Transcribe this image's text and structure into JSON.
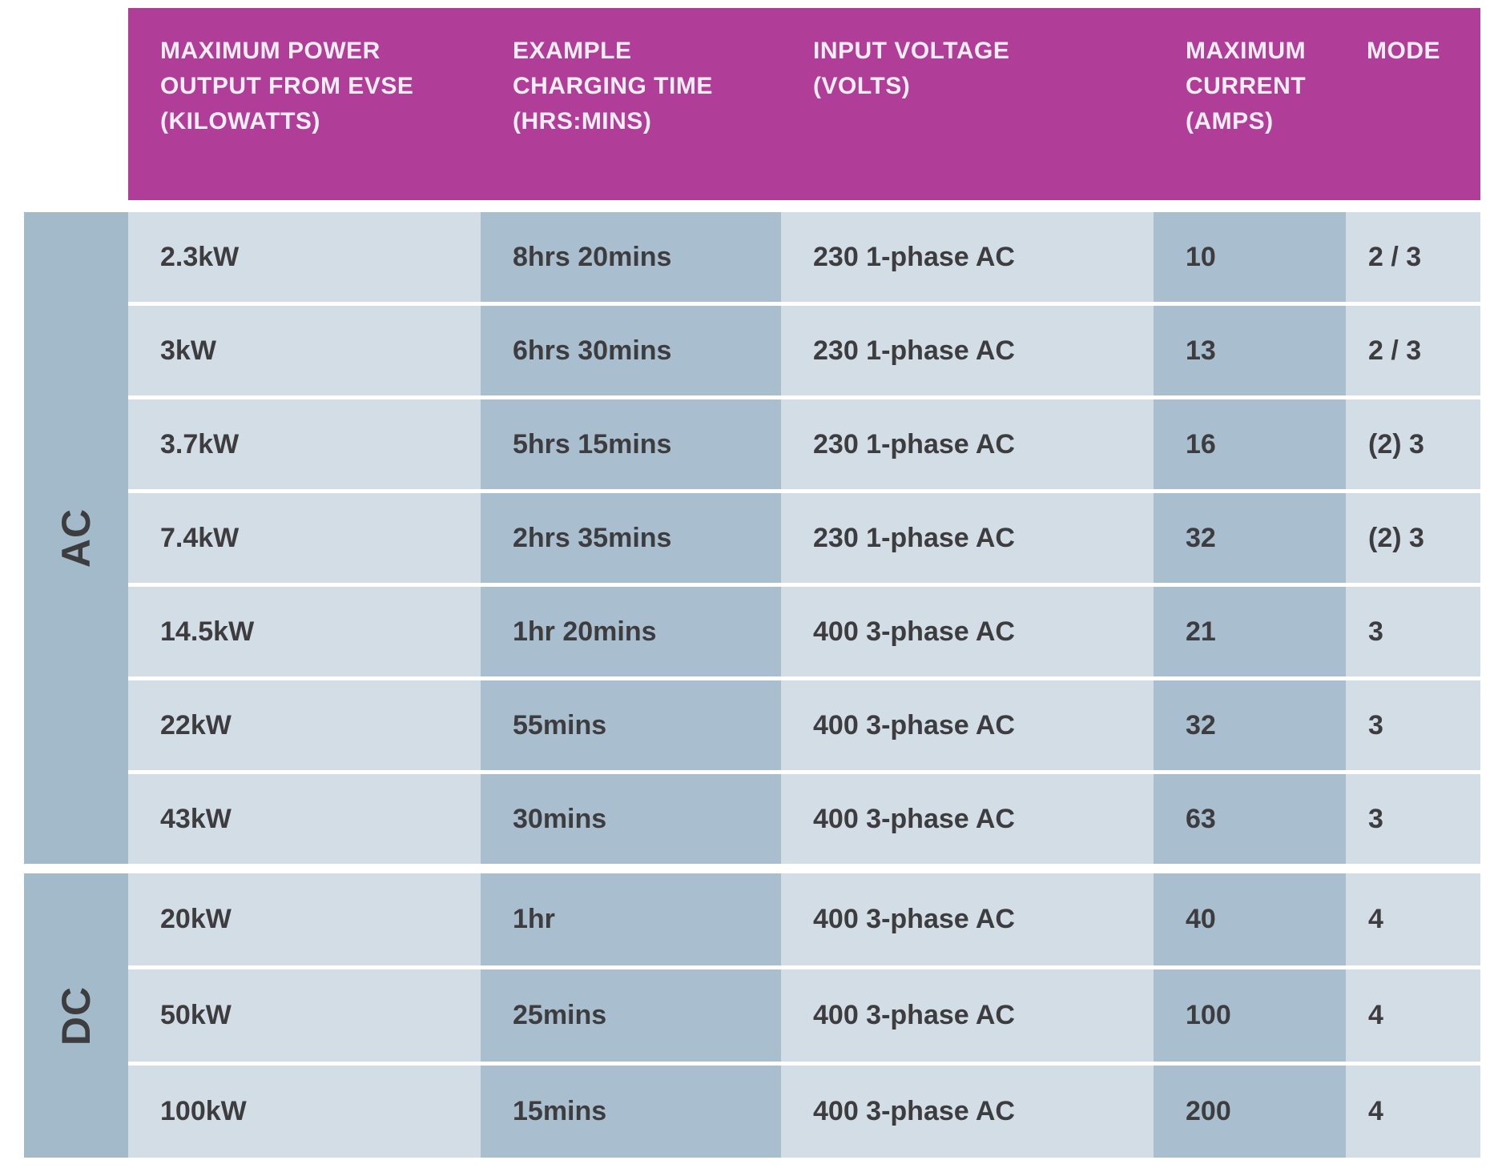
{
  "colors": {
    "header_bg": "#b03d98",
    "header_text": "#f7eef5",
    "cell_light": "#d2dde5",
    "cell_dark": "#a9bfcf",
    "group_band": "#a2bac9",
    "body_text": "#3d3d3f"
  },
  "table": {
    "columns": [
      {
        "lines": [
          "MAXIMUM POWER",
          "OUTPUT FROM EVSE",
          "(KILOWATTS)"
        ]
      },
      {
        "lines": [
          "EXAMPLE",
          "CHARGING TIME",
          "(HRS:MINS)"
        ]
      },
      {
        "lines": [
          "INPUT VOLTAGE",
          "(VOLTS)"
        ]
      },
      {
        "lines": [
          "MAXIMUM",
          "CURRENT",
          "(AMPS)"
        ]
      },
      {
        "lines": [
          "MODE"
        ]
      }
    ],
    "groups": [
      {
        "label": "AC",
        "rows": [
          {
            "power": "2.3kW",
            "time": "8hrs 20mins",
            "voltage": "230 1-phase AC",
            "current": "10",
            "mode": "2 / 3"
          },
          {
            "power": "3kW",
            "time": "6hrs 30mins",
            "voltage": "230 1-phase AC",
            "current": "13",
            "mode": "2 / 3"
          },
          {
            "power": "3.7kW",
            "time": "5hrs 15mins",
            "voltage": "230 1-phase AC",
            "current": "16",
            "mode": "(2) 3"
          },
          {
            "power": "7.4kW",
            "time": "2hrs 35mins",
            "voltage": "230 1-phase AC",
            "current": "32",
            "mode": "(2) 3"
          },
          {
            "power": "14.5kW",
            "time": "1hr 20mins",
            "voltage": "400 3-phase AC",
            "current": "21",
            "mode": "3"
          },
          {
            "power": "22kW",
            "time": "55mins",
            "voltage": "400 3-phase AC",
            "current": "32",
            "mode": "3"
          },
          {
            "power": "43kW",
            "time": "30mins",
            "voltage": "400 3-phase AC",
            "current": "63",
            "mode": "3"
          }
        ]
      },
      {
        "label": "DC",
        "rows": [
          {
            "power": "20kW",
            "time": "1hr",
            "voltage": "400 3-phase AC",
            "current": "40",
            "mode": "4"
          },
          {
            "power": "50kW",
            "time": "25mins",
            "voltage": "400 3-phase AC",
            "current": "100",
            "mode": "4"
          },
          {
            "power": "100kW",
            "time": "15mins",
            "voltage": "400 3-phase AC",
            "current": "200",
            "mode": "4"
          }
        ]
      }
    ]
  },
  "chart_data": {
    "type": "table",
    "columns": [
      "",
      "MAXIMUM POWER OUTPUT FROM EVSE (KILOWATTS)",
      "EXAMPLE CHARGING TIME (HRS:MINS)",
      "INPUT VOLTAGE (VOLTS)",
      "MAXIMUM CURRENT (AMPS)",
      "MODE"
    ],
    "rows": [
      [
        "AC",
        "2.3kW",
        "8hrs 20mins",
        "230 1-phase AC",
        "10",
        "2 / 3"
      ],
      [
        "AC",
        "3kW",
        "6hrs 30mins",
        "230 1-phase AC",
        "13",
        "2 / 3"
      ],
      [
        "AC",
        "3.7kW",
        "5hrs 15mins",
        "230 1-phase AC",
        "16",
        "(2) 3"
      ],
      [
        "AC",
        "7.4kW",
        "2hrs 35mins",
        "230 1-phase AC",
        "32",
        "(2) 3"
      ],
      [
        "AC",
        "14.5kW",
        "1hr 20mins",
        "400 3-phase AC",
        "21",
        "3"
      ],
      [
        "AC",
        "22kW",
        "55mins",
        "400 3-phase AC",
        "32",
        "3"
      ],
      [
        "AC",
        "43kW",
        "30mins",
        "400 3-phase AC",
        "63",
        "3"
      ],
      [
        "DC",
        "20kW",
        "1hr",
        "400 3-phase AC",
        "40",
        "4"
      ],
      [
        "DC",
        "50kW",
        "25mins",
        "400 3-phase AC",
        "100",
        "4"
      ],
      [
        "DC",
        "100kW",
        "15mins",
        "400 3-phase AC",
        "200",
        "4"
      ]
    ]
  }
}
